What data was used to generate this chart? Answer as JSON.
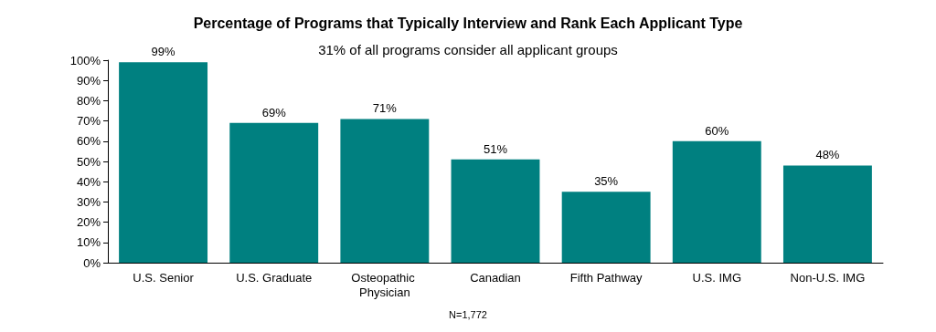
{
  "chart_data": {
    "type": "bar",
    "title": "Percentage of Programs that Typically Interview and Rank Each Applicant Type",
    "subtitle": "31% of all programs consider all applicant groups",
    "categories": [
      "U.S. Senior",
      "U.S. Graduate",
      "Osteopathic Physician",
      "Canadian",
      "Fifth Pathway",
      "U.S. IMG",
      "Non-U.S. IMG"
    ],
    "values": [
      99,
      69,
      71,
      51,
      35,
      60,
      48
    ],
    "value_labels": [
      "99%",
      "69%",
      "71%",
      "51%",
      "35%",
      "60%",
      "48%"
    ],
    "color": "#008080",
    "ylim": [
      0,
      100
    ],
    "yticks": [
      {
        "value": 0,
        "label": "0%"
      },
      {
        "value": 10,
        "label": "10%"
      },
      {
        "value": 20,
        "label": "20%"
      },
      {
        "value": 30,
        "label": "30%"
      },
      {
        "value": 40,
        "label": "40%"
      },
      {
        "value": 50,
        "label": "50%"
      },
      {
        "value": 60,
        "label": "60%"
      },
      {
        "value": 70,
        "label": "70%"
      },
      {
        "value": 80,
        "label": "80%"
      },
      {
        "value": 90,
        "label": "90%"
      },
      {
        "value": 100,
        "label": "100%"
      }
    ],
    "grid": false,
    "annotations": [
      "N=1,772"
    ]
  }
}
